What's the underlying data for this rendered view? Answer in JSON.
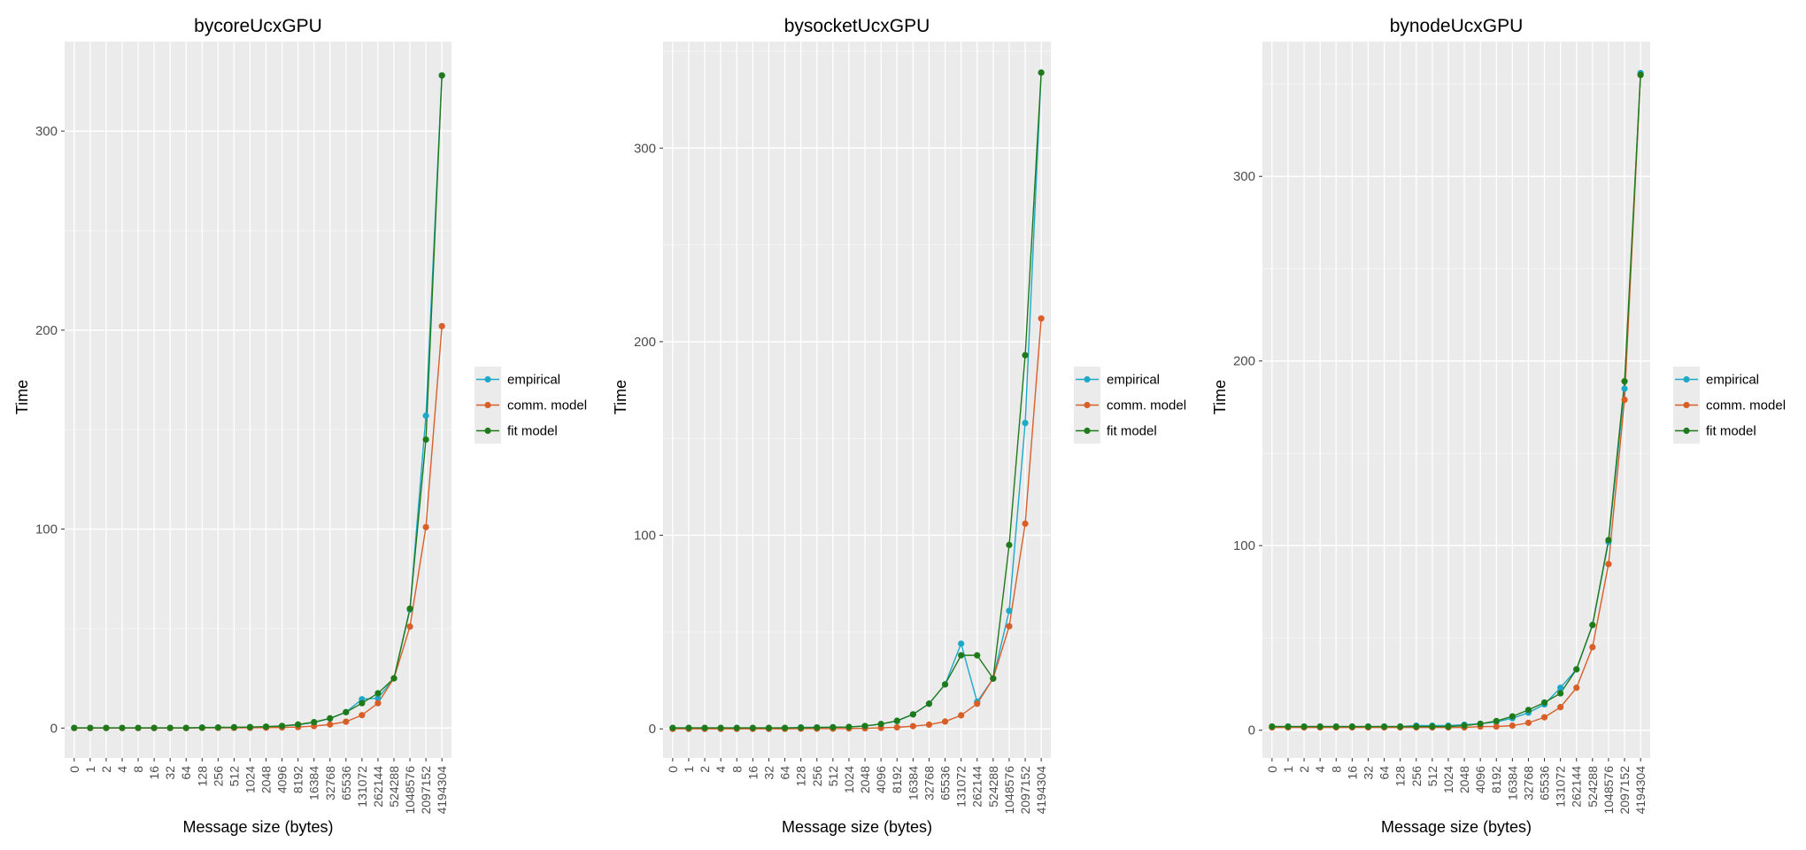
{
  "chart_data": [
    {
      "type": "line",
      "title": "bycoreUcxGPU",
      "xlabel": "Message size (bytes)",
      "ylabel": "Time",
      "categories": [
        "0",
        "1",
        "2",
        "4",
        "8",
        "16",
        "32",
        "64",
        "128",
        "256",
        "512",
        "1024",
        "2048",
        "4096",
        "8192",
        "16384",
        "32768",
        "65536",
        "131072",
        "262144",
        "524288",
        "1048576",
        "2097152",
        "4194304"
      ],
      "ylim": [
        -15,
        345
      ],
      "yticks": [
        0,
        100,
        200,
        300
      ],
      "grid": true,
      "legend_position": "right",
      "series": [
        {
          "name": "empirical",
          "color": "#1fa9c9",
          "values": [
            0.1,
            0.1,
            0.1,
            0.1,
            0.1,
            0.1,
            0.1,
            0.1,
            0.3,
            0.3,
            0.4,
            0.5,
            0.7,
            1.0,
            1.6,
            2.8,
            4.8,
            8.0,
            14.5,
            15.0,
            25.0,
            59.5,
            157.0,
            328.0
          ]
        },
        {
          "name": "comm. model",
          "color": "#d95f28",
          "values": [
            0.0,
            0.0,
            0.0,
            0.0,
            0.0,
            0.0,
            0.0,
            0.0,
            0.1,
            0.1,
            0.1,
            0.1,
            0.2,
            0.3,
            0.5,
            1.0,
            1.8,
            3.2,
            6.5,
            12.5,
            25.0,
            51.0,
            101.0,
            202.0
          ]
        },
        {
          "name": "fit model",
          "color": "#1f7a1a",
          "values": [
            0.1,
            0.1,
            0.1,
            0.1,
            0.1,
            0.1,
            0.1,
            0.1,
            0.2,
            0.3,
            0.4,
            0.5,
            0.7,
            1.1,
            1.8,
            3.0,
            4.9,
            8.0,
            12.5,
            17.5,
            25.0,
            60.0,
            145.0,
            328.0
          ]
        }
      ]
    },
    {
      "type": "line",
      "title": "bysocketUcxGPU",
      "xlabel": "Message size (bytes)",
      "ylabel": "Time",
      "categories": [
        "0",
        "1",
        "2",
        "4",
        "8",
        "16",
        "32",
        "64",
        "128",
        "256",
        "512",
        "1024",
        "2048",
        "4096",
        "8192",
        "16384",
        "32768",
        "65536",
        "131072",
        "262144",
        "524288",
        "1048576",
        "2097152",
        "4194304"
      ],
      "ylim": [
        -15,
        355
      ],
      "yticks": [
        0,
        100,
        200,
        300
      ],
      "grid": true,
      "legend_position": "right",
      "series": [
        {
          "name": "empirical",
          "color": "#1fa9c9",
          "values": [
            0.5,
            0.5,
            0.5,
            0.5,
            0.5,
            0.5,
            0.5,
            0.5,
            0.8,
            0.8,
            0.9,
            1.0,
            1.5,
            2.5,
            4.0,
            7.5,
            13.0,
            23.0,
            44.0,
            14.0,
            26.0,
            61.0,
            158.0,
            339.0
          ]
        },
        {
          "name": "comm. model",
          "color": "#d95f28",
          "values": [
            0.0,
            0.0,
            0.0,
            0.0,
            0.0,
            0.0,
            0.0,
            0.0,
            0.1,
            0.1,
            0.1,
            0.2,
            0.3,
            0.5,
            0.8,
            1.4,
            2.2,
            3.8,
            7.0,
            13.0,
            26.0,
            53.0,
            106.0,
            212.0
          ]
        },
        {
          "name": "fit model",
          "color": "#1f7a1a",
          "values": [
            0.5,
            0.5,
            0.5,
            0.5,
            0.5,
            0.5,
            0.5,
            0.5,
            0.6,
            0.7,
            0.8,
            1.0,
            1.5,
            2.5,
            4.2,
            7.5,
            13.0,
            23.0,
            38.0,
            38.0,
            26.0,
            95.0,
            193.0,
            339.0
          ]
        }
      ]
    },
    {
      "type": "line",
      "title": "bynodeUcxGPU",
      "xlabel": "Message size (bytes)",
      "ylabel": "Time",
      "categories": [
        "0",
        "1",
        "2",
        "4",
        "8",
        "16",
        "32",
        "64",
        "128",
        "256",
        "512",
        "1024",
        "2048",
        "4096",
        "8192",
        "16384",
        "32768",
        "65536",
        "131072",
        "262144",
        "524288",
        "1048576",
        "2097152",
        "4194304"
      ],
      "ylim": [
        -15,
        373
      ],
      "yticks": [
        0,
        100,
        200,
        300
      ],
      "grid": true,
      "legend_position": "right",
      "series": [
        {
          "name": "empirical",
          "color": "#1fa9c9",
          "values": [
            2.0,
            2.0,
            2.0,
            2.0,
            2.0,
            2.0,
            2.0,
            2.0,
            2.0,
            2.5,
            2.5,
            2.5,
            3.0,
            3.5,
            4.5,
            6.5,
            9.5,
            14.0,
            23.0,
            33.0,
            57.0,
            102.0,
            185.0,
            356.0
          ]
        },
        {
          "name": "comm. model",
          "color": "#d95f28",
          "values": [
            1.5,
            1.5,
            1.5,
            1.5,
            1.5,
            1.5,
            1.5,
            1.5,
            1.5,
            1.5,
            1.5,
            1.5,
            1.5,
            2.0,
            2.0,
            2.5,
            4.0,
            7.0,
            12.5,
            23.0,
            45.0,
            90.0,
            179.0,
            355.0
          ]
        },
        {
          "name": "fit model",
          "color": "#1f7a1a",
          "values": [
            2.0,
            2.0,
            2.0,
            2.0,
            2.0,
            2.0,
            2.0,
            2.0,
            2.0,
            2.0,
            2.0,
            2.0,
            2.5,
            3.5,
            5.0,
            7.5,
            11.0,
            15.0,
            20.0,
            33.0,
            57.0,
            103.0,
            189.0,
            355.0
          ]
        }
      ]
    }
  ]
}
